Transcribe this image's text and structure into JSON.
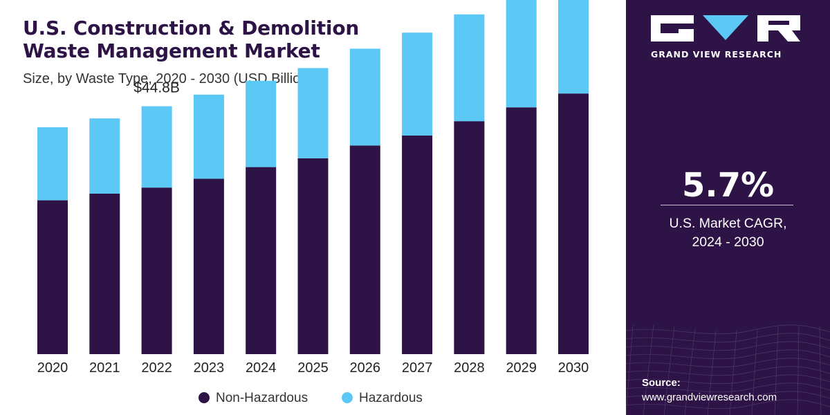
{
  "header": {
    "title_line1": "U.S. Construction & Demolition",
    "title_line2": "Waste Management Market",
    "subtitle": "Size, by Waste Type, 2020 - 2030 (USD Billion)"
  },
  "chart_data": {
    "type": "bar",
    "stacked": true,
    "categories": [
      "2020",
      "2021",
      "2022",
      "2023",
      "2024",
      "2025",
      "2026",
      "2027",
      "2028",
      "2029",
      "2030"
    ],
    "series": [
      {
        "name": "Non-Hazardous",
        "color": "#2e1346",
        "values": [
          27.8,
          29.0,
          30.1,
          31.7,
          33.8,
          35.4,
          37.7,
          39.5,
          42.1,
          44.6,
          47.1
        ]
      },
      {
        "name": "Hazardous",
        "color": "#5bc8f5",
        "values": [
          13.2,
          13.6,
          14.7,
          15.2,
          15.6,
          16.3,
          17.5,
          18.6,
          19.3,
          21.0,
          22.2
        ]
      }
    ],
    "annotations": [
      {
        "category": "2022",
        "text": "$44.8B"
      }
    ],
    "ylim": [
      0,
      70
    ],
    "grid": false,
    "legend": "bottom"
  },
  "side": {
    "brand": "GRAND VIEW RESEARCH",
    "cagr_value": "5.7%",
    "cagr_label_line1": "U.S. Market CAGR,",
    "cagr_label_line2": "2024 - 2030",
    "source_title": "Source:",
    "source_url": "www.grandviewresearch.com"
  },
  "colors": {
    "panel_background": "#2e1346",
    "non_hazardous": "#2e1346",
    "hazardous": "#5bc8f5",
    "logo_accent": "#5bc8f5"
  },
  "icons": [
    "grand-view-research-logo"
  ]
}
